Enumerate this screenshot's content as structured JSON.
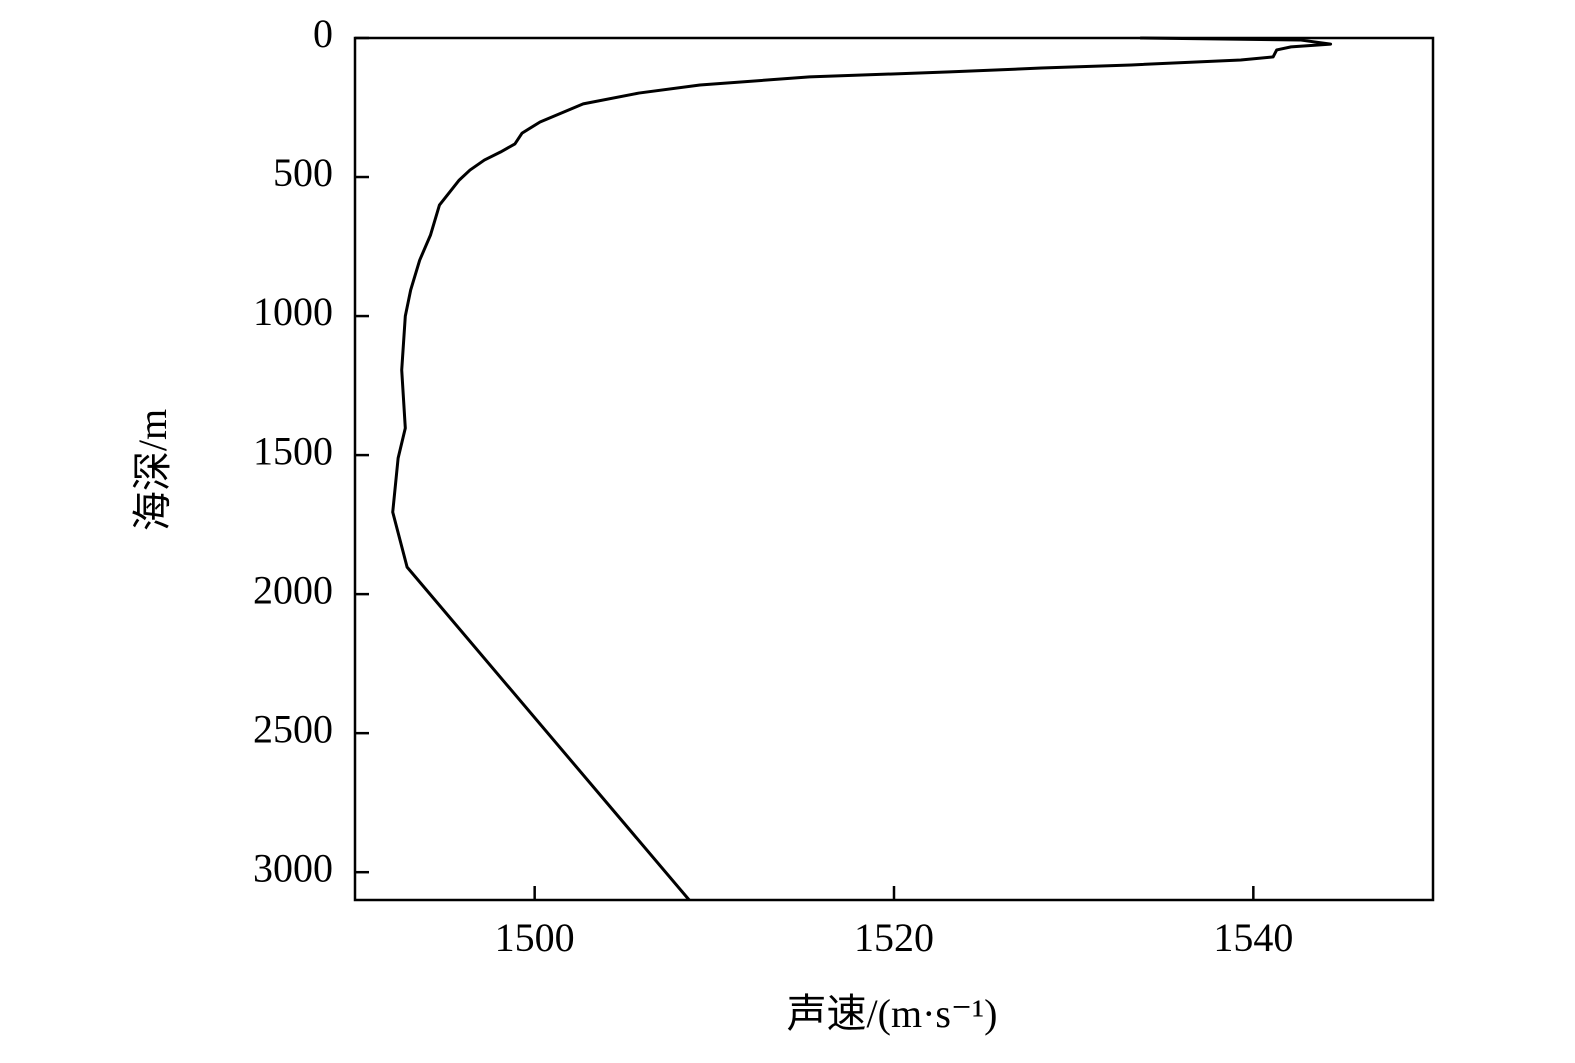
{
  "chart_data": {
    "type": "line",
    "xlabel": "声速/(m·s⁻¹)",
    "ylabel": "海深/m",
    "x": [
      1533.7,
      1542.6,
      1544.3,
      1542.1,
      1541.3,
      1541.1,
      1539.3,
      1533.2,
      1528.2,
      1523.1,
      1515.3,
      1509.2,
      1505.8,
      1502.7,
      1500.3,
      1499.3,
      1498.9,
      1498.1,
      1497.2,
      1496.4,
      1495.8,
      1494.7,
      1494.2,
      1493.6,
      1493.1,
      1492.8,
      1492.6,
      1492.8,
      1492.4,
      1492.1,
      1492.9,
      1508.6
    ],
    "y": [
      0,
      7,
      22,
      32,
      43,
      68,
      79,
      97,
      108,
      122,
      140,
      169,
      198,
      237,
      302,
      342,
      381,
      410,
      439,
      475,
      511,
      601,
      709,
      799,
      906,
      1000,
      1194,
      1403,
      1511,
      1705,
      1903,
      3100
    ],
    "color": "#000000",
    "xlim": [
      1490,
      1550
    ],
    "xticks": [
      1500,
      1520,
      1540
    ],
    "ylim": [
      0,
      3100
    ],
    "yticks": [
      0,
      500,
      1000,
      1500,
      2000,
      2500,
      3000
    ],
    "yinverted": true,
    "grid": false
  }
}
